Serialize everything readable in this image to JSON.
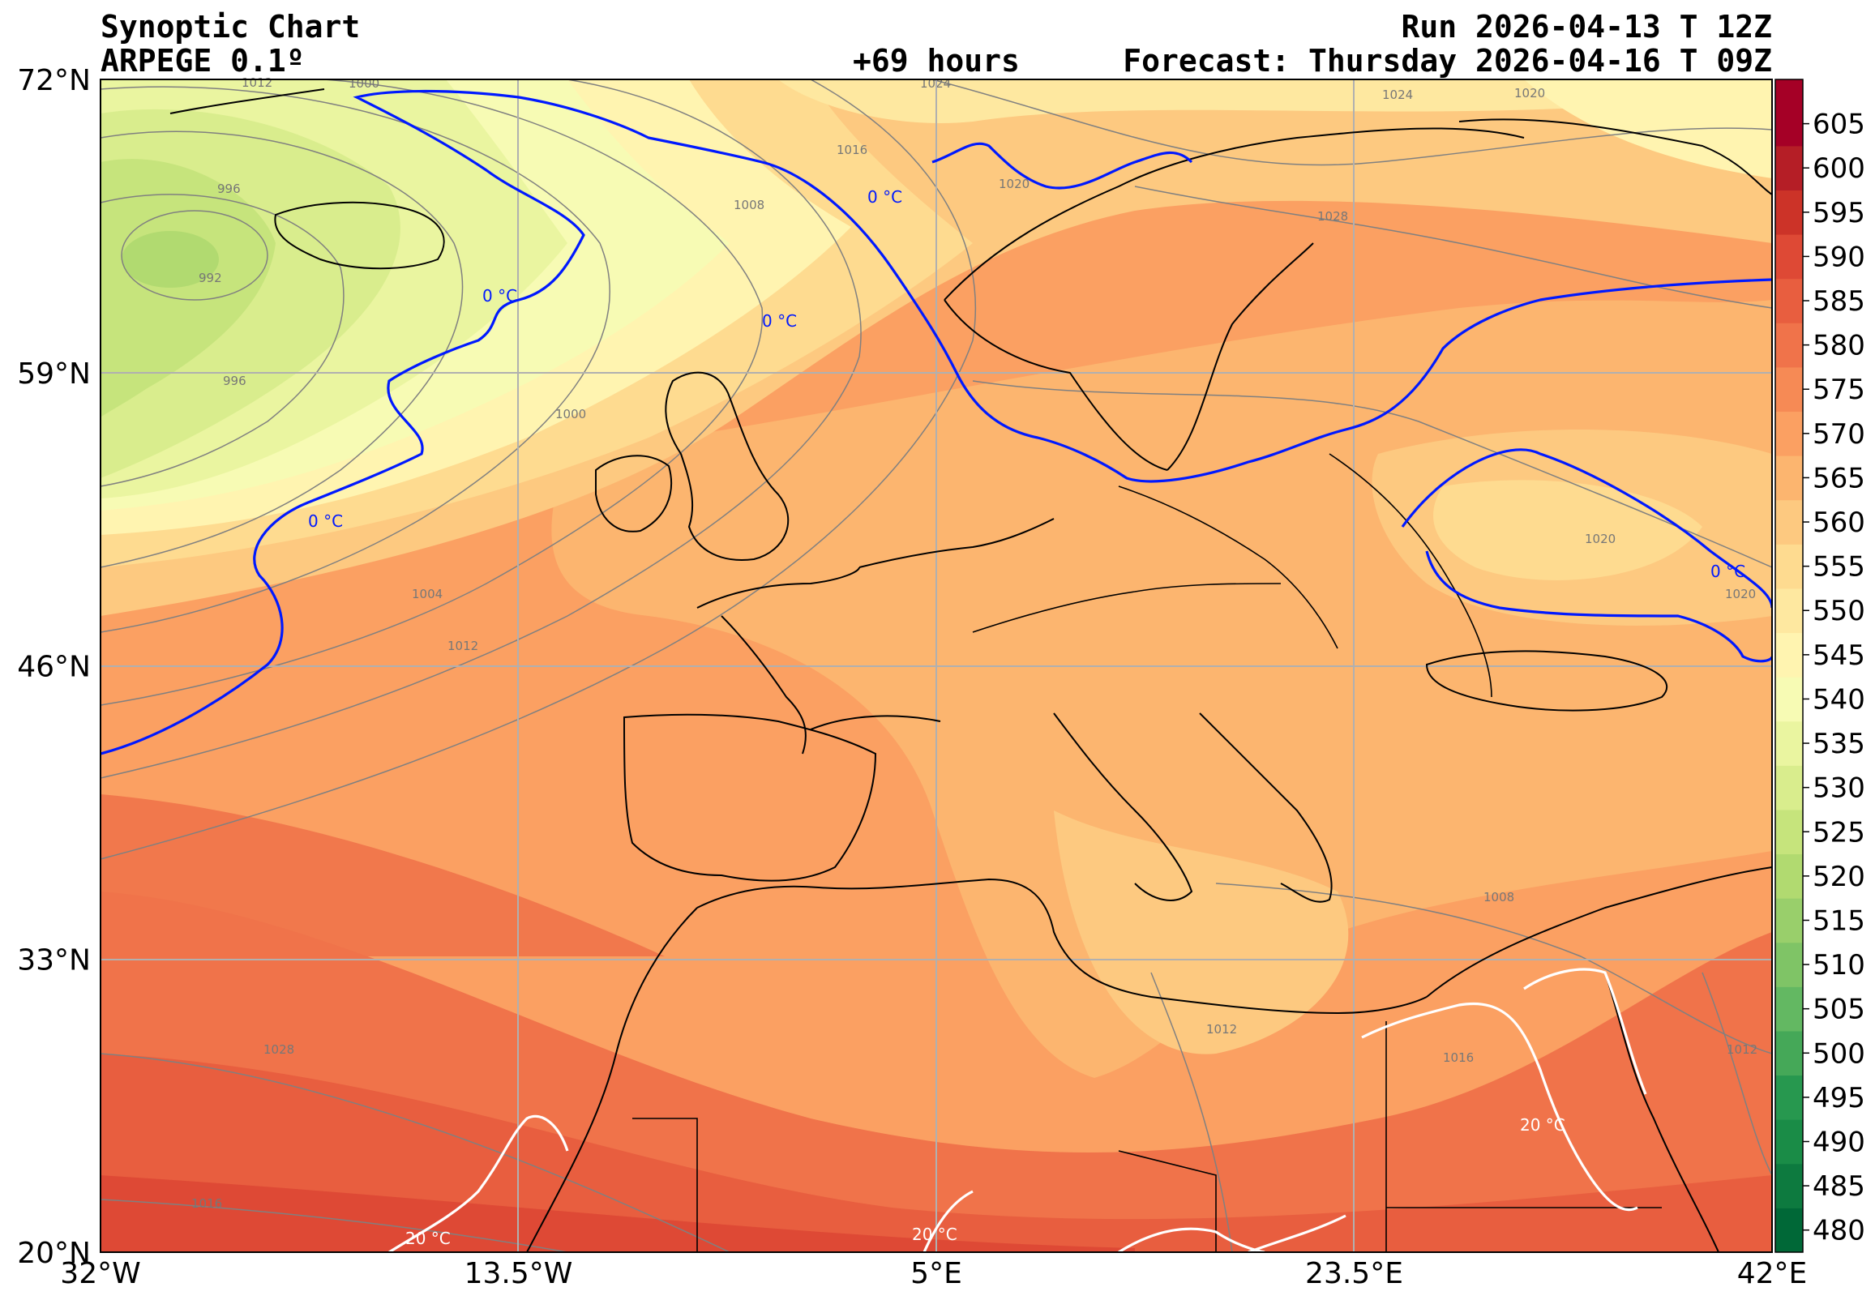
{
  "header": {
    "title": "Synoptic Chart",
    "model": "ARPEGE 0.1º",
    "run": "Run 2026-04-13 T 12Z",
    "lead": "+69 hours",
    "forecast": "Forecast: Thursday 2026-04-16 T 09Z"
  },
  "axes": {
    "lat_labels": [
      "72°N",
      "59°N",
      "46°N",
      "33°N",
      "20°N"
    ],
    "lon_labels": [
      "32°W",
      "13.5°W",
      "5°E",
      "23.5°E",
      "42°E"
    ],
    "lat_values": [
      72,
      59,
      46,
      33,
      20
    ],
    "lon_values": [
      -32,
      -13.5,
      5,
      23.5,
      42
    ],
    "grid": true
  },
  "colorbar": {
    "levels": [
      480,
      485,
      490,
      495,
      500,
      505,
      510,
      515,
      520,
      525,
      530,
      535,
      540,
      545,
      550,
      555,
      560,
      565,
      570,
      575,
      580,
      585,
      590,
      595,
      600,
      605
    ],
    "colors": [
      "#006837",
      "#0d7a3f",
      "#1a8c47",
      "#27984f",
      "#45a858",
      "#63b862",
      "#7fc466",
      "#99cf6b",
      "#b1da70",
      "#c6e47c",
      "#d9ed8d",
      "#eaf5a0",
      "#f7fbb4",
      "#fff4b0",
      "#fee8a0",
      "#fedb90",
      "#fdc980",
      "#fcb56f",
      "#fba062",
      "#f68a55",
      "#f0734a",
      "#e85e3f",
      "#de4935",
      "#cc3328",
      "#b51e26",
      "#a50026"
    ]
  },
  "isobars": {
    "labels": [
      "1012",
      "1008",
      "1000",
      "996",
      "992",
      "996",
      "1000",
      "1004",
      "1012",
      "1016",
      "1020",
      "1024",
      "1024",
      "1020",
      "1028",
      "1020",
      "1020",
      "1008",
      "1012",
      "1016",
      "1012",
      "1028",
      "1016"
    ]
  },
  "isotherms": {
    "cold_label": "0 °C",
    "warm_label": "20 °C",
    "cold_color": "#0019ff",
    "warm_color": "#ffffff"
  }
}
